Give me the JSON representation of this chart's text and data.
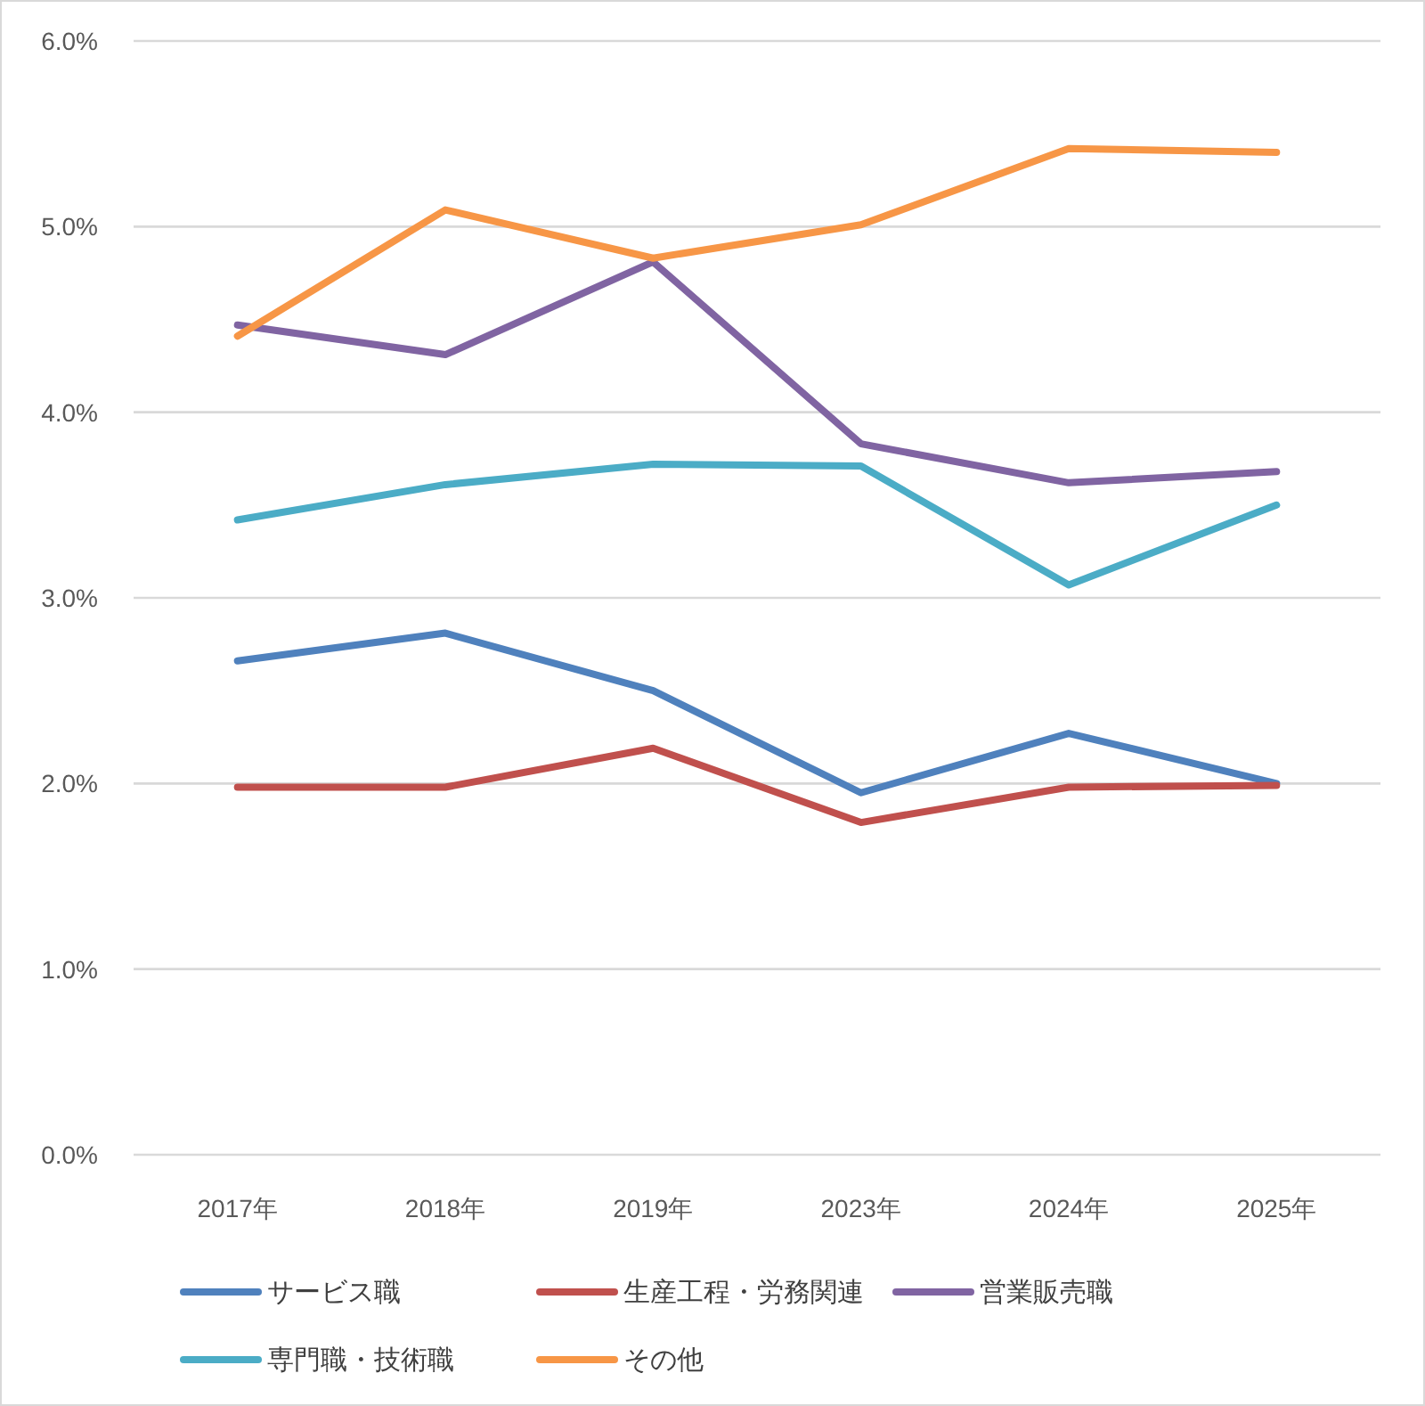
{
  "chart_data": {
    "type": "line",
    "categories": [
      "2017年",
      "2018年",
      "2019年",
      "2023年",
      "2024年",
      "2025年"
    ],
    "series": [
      {
        "name": "サービス職",
        "color": "#4f81bd",
        "values": [
          2.66,
          2.81,
          2.5,
          1.95,
          2.27,
          2.0
        ]
      },
      {
        "name": "生産工程・労務関連",
        "color": "#c0504d",
        "values": [
          1.98,
          1.98,
          2.19,
          1.79,
          1.98,
          1.99
        ]
      },
      {
        "name": "営業販売職",
        "color": "#8064a2",
        "values": [
          4.47,
          4.31,
          4.81,
          3.83,
          3.62,
          3.68
        ]
      },
      {
        "name": "専門職・技術職",
        "color": "#4bacc6",
        "values": [
          3.42,
          3.61,
          3.72,
          3.71,
          3.07,
          3.5
        ]
      },
      {
        "name": "その他",
        "color": "#f79646",
        "values": [
          4.41,
          5.09,
          4.83,
          5.01,
          5.42,
          5.4
        ]
      }
    ],
    "ylim": [
      0,
      6
    ],
    "yticks": [
      {
        "value": 0,
        "label": "0.0%"
      },
      {
        "value": 1,
        "label": "1.0%"
      },
      {
        "value": 2,
        "label": "2.0%"
      },
      {
        "value": 3,
        "label": "3.0%"
      },
      {
        "value": 4,
        "label": "4.0%"
      },
      {
        "value": 5,
        "label": "5.0%"
      },
      {
        "value": 6,
        "label": "6.0%"
      }
    ],
    "grid": "y",
    "legend": "bottom"
  }
}
